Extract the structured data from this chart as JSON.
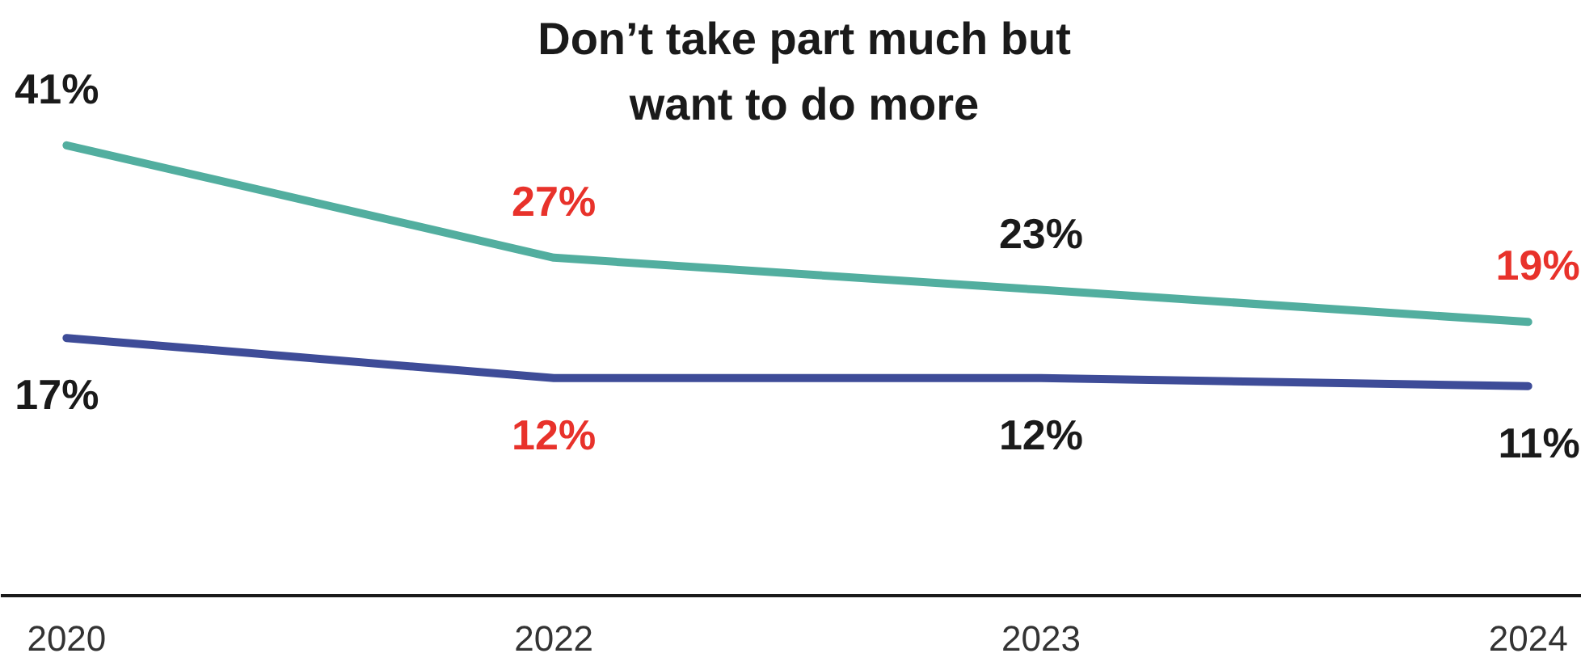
{
  "chart_data": {
    "type": "line",
    "title": "Don’t take part much but want to do more",
    "categories": [
      "2020",
      "2022",
      "2023",
      "2024"
    ],
    "series": [
      {
        "color": "#52ae9f",
        "values": [
          41,
          27,
          23,
          19
        ],
        "value_labels": [
          "41%",
          "27%",
          "23%",
          "19%"
        ]
      },
      {
        "color": "#3e4c98",
        "values": [
          17,
          12,
          12,
          11
        ],
        "value_labels": [
          "17%",
          "12%",
          "12%",
          "11%"
        ]
      }
    ],
    "tick_labels": "x"
  }
}
